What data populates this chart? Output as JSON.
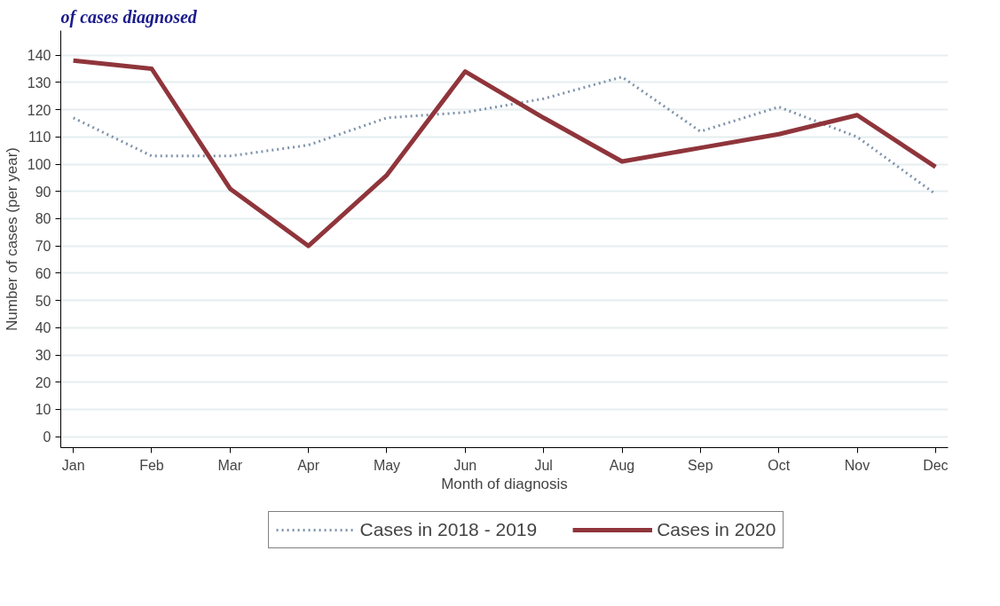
{
  "chart_data": {
    "type": "line",
    "title": "of cases diagnosed",
    "xlabel": "Month of diagnosis",
    "ylabel": "Number of cases (per year)",
    "categories": [
      "Jan",
      "Feb",
      "Mar",
      "Apr",
      "May",
      "Jun",
      "Jul",
      "Aug",
      "Sep",
      "Oct",
      "Nov",
      "Dec"
    ],
    "series": [
      {
        "name": "Cases in 2018 - 2019",
        "color": "#7f93ab",
        "line_style": "dotted",
        "values": [
          117,
          103,
          103,
          107,
          117,
          119,
          124,
          132,
          112,
          121,
          110,
          89
        ]
      },
      {
        "name": "Cases in 2020",
        "color": "#8f353b",
        "line_style": "solid",
        "values": [
          138,
          135,
          91,
          70,
          96,
          134,
          117,
          101,
          106,
          111,
          118,
          99
        ]
      }
    ],
    "ylim": [
      -4,
      149
    ],
    "yticks": [
      0,
      10,
      20,
      30,
      40,
      50,
      60,
      70,
      80,
      90,
      100,
      110,
      120,
      130,
      140
    ],
    "grid": "y",
    "legend": "bottom"
  }
}
